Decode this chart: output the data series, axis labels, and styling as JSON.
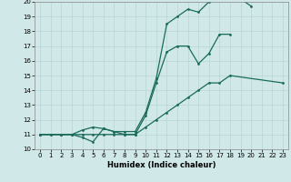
{
  "xlabel": "Humidex (Indice chaleur)",
  "bg_color": "#d0e8e8",
  "grid_color": "#b8d4d4",
  "line_color": "#1a6b5a",
  "xlim_min": -0.5,
  "xlim_max": 23.5,
  "ylim_min": 10,
  "ylim_max": 20,
  "xticks": [
    0,
    1,
    2,
    3,
    4,
    5,
    6,
    7,
    8,
    9,
    10,
    11,
    12,
    13,
    14,
    15,
    16,
    17,
    18,
    19,
    20,
    21,
    22,
    23
  ],
  "yticks": [
    10,
    11,
    12,
    13,
    14,
    15,
    16,
    17,
    18,
    19,
    20
  ],
  "line1_x": [
    0,
    1,
    2,
    3,
    4,
    5,
    6,
    7,
    8,
    9,
    10,
    11,
    12,
    13,
    14,
    15,
    16,
    17,
    18,
    19,
    20
  ],
  "line1_y": [
    11,
    11,
    11,
    11,
    10.8,
    10.5,
    11.4,
    11.2,
    11.2,
    11.2,
    12.5,
    14.8,
    18.5,
    19.0,
    19.5,
    19.3,
    20.0,
    20.2,
    20.2,
    20.2,
    19.7
  ],
  "line2_x": [
    0,
    2,
    3,
    4,
    5,
    6,
    7,
    8,
    9,
    10,
    11,
    12,
    13,
    14,
    15,
    16,
    17,
    18,
    19,
    20,
    21,
    22
  ],
  "line2_y": [
    11,
    11,
    11,
    11.3,
    11.5,
    11.4,
    11.2,
    11,
    11,
    12.3,
    14.5,
    16.6,
    17.0,
    17.0,
    15.8,
    16.5,
    17.8,
    17.8,
    null,
    null,
    null,
    null
  ],
  "line3_x": [
    0,
    1,
    2,
    3,
    4,
    5,
    6,
    7,
    8,
    9,
    10,
    11,
    12,
    13,
    14,
    15,
    16,
    17,
    18,
    23
  ],
  "line3_y": [
    11,
    11,
    11,
    11,
    11,
    11,
    11,
    11,
    11,
    11,
    11.5,
    12.0,
    12.5,
    13.0,
    13.5,
    14.0,
    14.5,
    14.5,
    15.0,
    14.5
  ]
}
